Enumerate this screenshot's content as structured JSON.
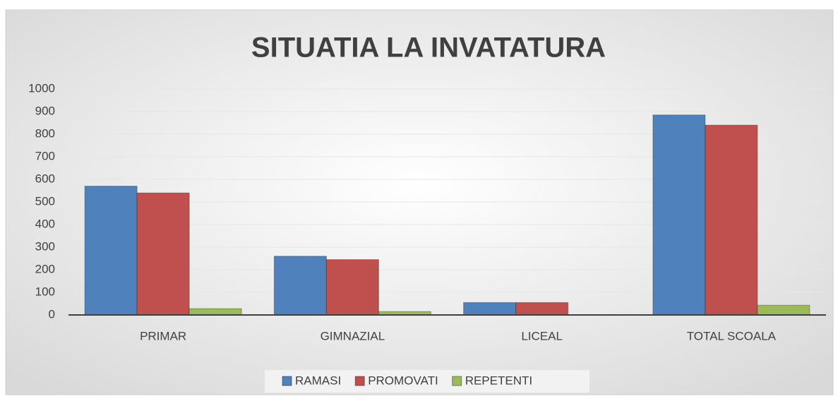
{
  "chart_data": {
    "type": "bar",
    "title": "SITUATIA LA INVATATURA",
    "categories": [
      "PRIMAR",
      "GIMNAZIAL",
      "LICEAL",
      "TOTAL SCOALA"
    ],
    "series": [
      {
        "name": "RAMASI",
        "color": "#4f81bd",
        "values": [
          570,
          260,
          55,
          885
        ]
      },
      {
        "name": "PROMOVATI",
        "color": "#c0504d",
        "values": [
          540,
          245,
          55,
          840
        ]
      },
      {
        "name": "REPETENTI",
        "color": "#9bbb59",
        "values": [
          28,
          15,
          0,
          43
        ]
      }
    ],
    "ylim": [
      0,
      1000
    ],
    "yticks": [
      0,
      100,
      200,
      300,
      400,
      500,
      600,
      700,
      800,
      900,
      1000
    ],
    "grid": true,
    "legend": "bottom"
  }
}
